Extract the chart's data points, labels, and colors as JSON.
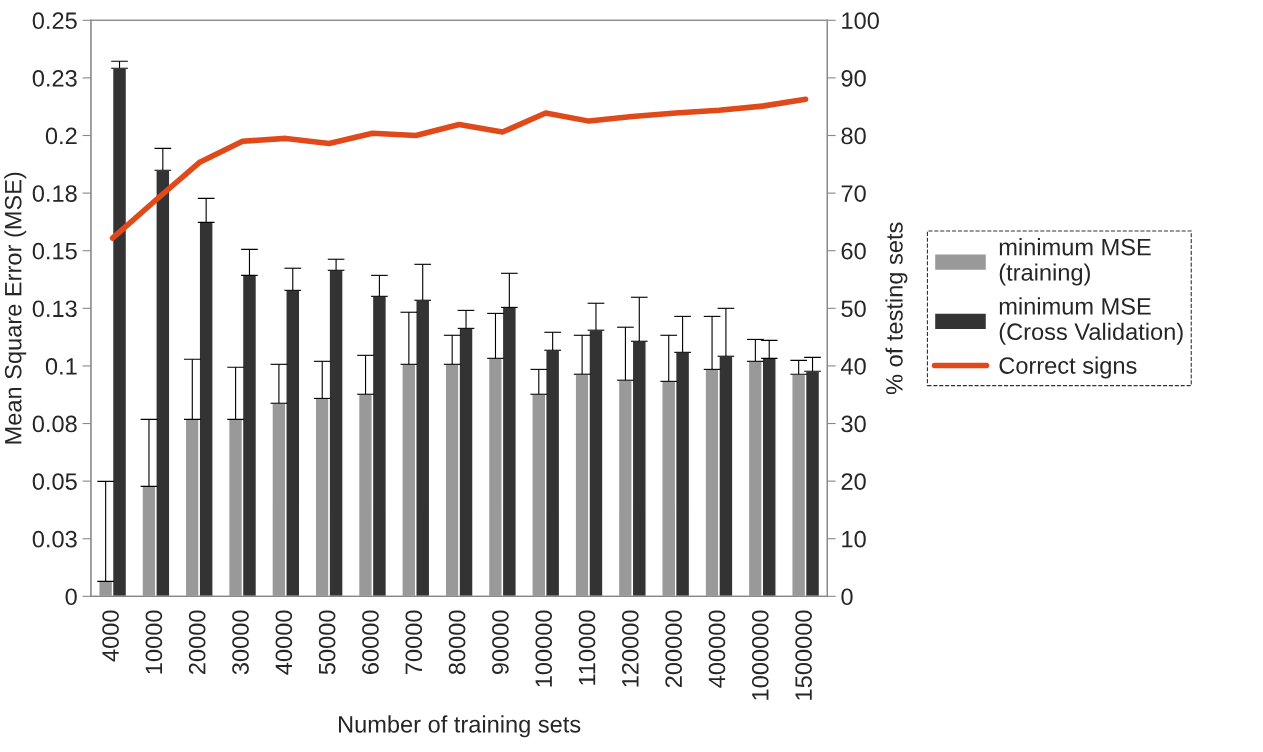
{
  "chart_data": {
    "type": "bar",
    "xlabel": "Number of training sets",
    "ylabel": "Mean Square Error (MSE)",
    "y2label": "% of testing sets",
    "categories": [
      "4000",
      "10000",
      "20000",
      "30000",
      "40000",
      "50000",
      "60000",
      "70000",
      "80000",
      "90000",
      "100000",
      "110000",
      "120000",
      "200000",
      "400000",
      "1000000",
      "1500000"
    ],
    "series": [
      {
        "name": "minimum MSE\n(training)",
        "color": "#999999",
        "values": [
          0.0065,
          0.0477,
          0.0768,
          0.0768,
          0.0838,
          0.0859,
          0.0877,
          0.1007,
          0.1007,
          0.1033,
          0.0877,
          0.0964,
          0.0938,
          0.0933,
          0.0985,
          0.102,
          0.0964
        ],
        "errors": [
          [
            0.0065,
            0.0499
          ],
          [
            0.0477,
            0.0768
          ],
          [
            0.0768,
            0.1029
          ],
          [
            0.0768,
            0.0994
          ],
          [
            0.0838,
            0.1007
          ],
          [
            0.0859,
            0.102
          ],
          [
            0.0877,
            0.1046
          ],
          [
            0.1007,
            0.1233
          ],
          [
            0.1007,
            0.1133
          ],
          [
            0.1033,
            0.1228
          ],
          [
            0.0877,
            0.0985
          ],
          [
            0.0964,
            0.1133
          ],
          [
            0.0938,
            0.1168
          ],
          [
            0.0933,
            0.1133
          ],
          [
            0.0985,
            0.1215
          ],
          [
            0.102,
            0.1115
          ],
          [
            0.0964,
            0.1024
          ]
        ]
      },
      {
        "name": "minimum MSE\n(Cross Validation)",
        "color": "#333333",
        "values": [
          0.2292,
          0.1849,
          0.1623,
          0.1393,
          0.1328,
          0.1415,
          0.1302,
          0.1285,
          0.1163,
          0.1254,
          0.1068,
          0.1155,
          0.1107,
          0.1059,
          0.1042,
          0.1033,
          0.0977
        ],
        "errors": [
          [
            0.2292,
            0.2322
          ],
          [
            0.1849,
            0.1944
          ],
          [
            0.1623,
            0.1727
          ],
          [
            0.1393,
            0.1506
          ],
          [
            0.1328,
            0.1424
          ],
          [
            0.1415,
            0.1463
          ],
          [
            0.1302,
            0.1393
          ],
          [
            0.1285,
            0.1441
          ],
          [
            0.1163,
            0.1241
          ],
          [
            0.1254,
            0.1402
          ],
          [
            0.1068,
            0.1146
          ],
          [
            0.1155,
            0.1272
          ],
          [
            0.1107,
            0.1298
          ],
          [
            0.1059,
            0.1215
          ],
          [
            0.1042,
            0.125
          ],
          [
            0.1033,
            0.1111
          ],
          [
            0.0977,
            0.1037
          ]
        ]
      },
      {
        "name": "Correct signs",
        "type": "line",
        "axis": "y2",
        "color": "#e04a1a",
        "values": [
          62.2,
          68.8,
          75.3,
          79.0,
          79.5,
          78.6,
          80.4,
          80.0,
          81.9,
          80.6,
          83.9,
          82.5,
          83.3,
          83.9,
          84.4,
          85.1,
          86.3
        ]
      }
    ],
    "ylim": [
      0,
      0.25
    ],
    "yticks": [
      0,
      {
        "value": 0.025,
        "label": "0.03"
      },
      0.05,
      {
        "value": 0.075,
        "label": "0.08"
      },
      0.1,
      {
        "value": 0.125,
        "label": "0.13"
      },
      0.15,
      {
        "value": 0.175,
        "label": "0.18"
      },
      0.2,
      {
        "value": 0.225,
        "label": "0.23"
      },
      0.25
    ],
    "y2lim": [
      0,
      100
    ],
    "y2ticks": [
      0,
      10,
      20,
      30,
      40,
      50,
      60,
      70,
      80,
      90,
      100
    ],
    "legend": "right",
    "grid": false
  }
}
